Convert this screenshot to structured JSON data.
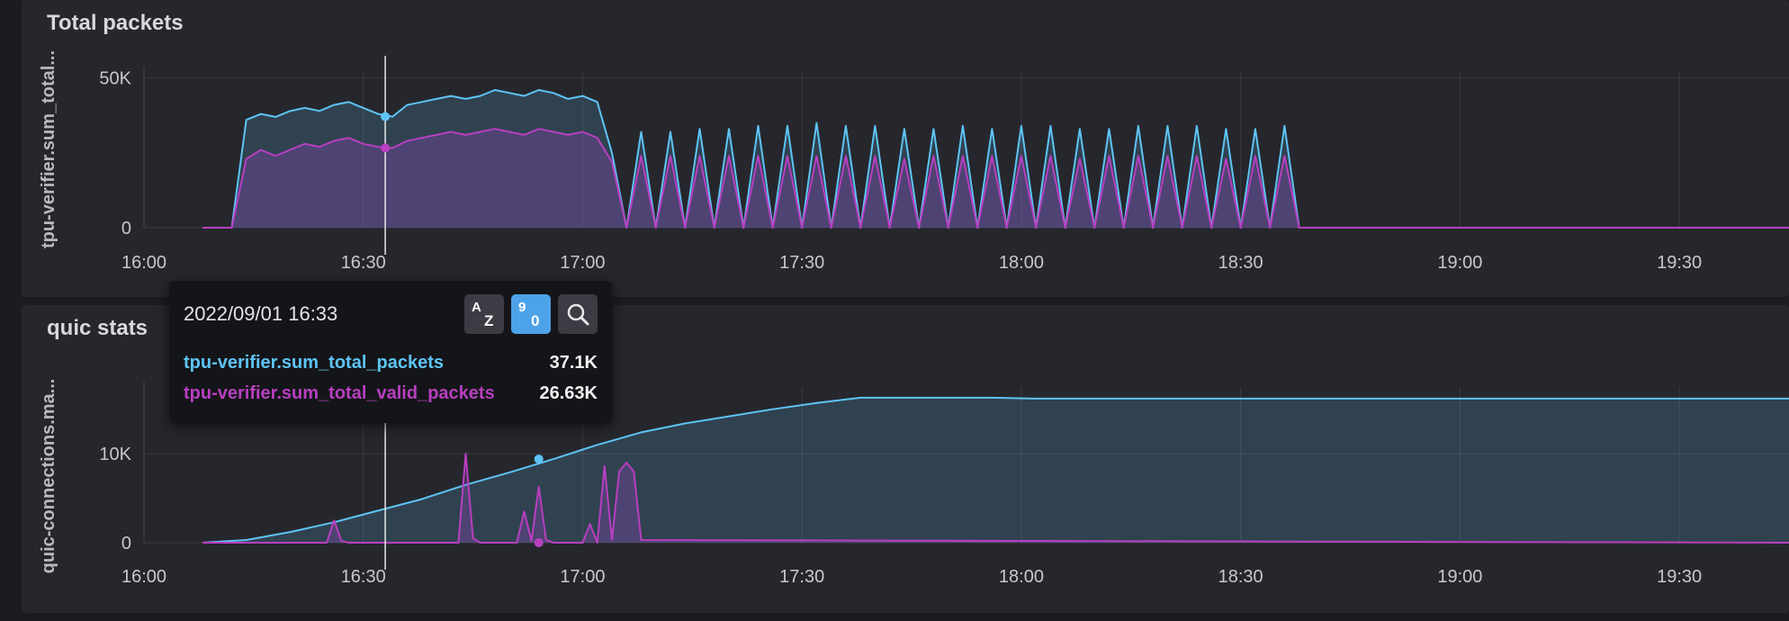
{
  "panels": [
    {
      "title": "Total packets",
      "ylabel": "tpu-verifier.sum_total..."
    },
    {
      "title": "quic stats",
      "ylabel": "quic-connections.ma..."
    }
  ],
  "tooltip": {
    "time": "2022/09/01 16:33",
    "sort_az_top": "A",
    "sort_az_bottom": "Z",
    "sort_num_top": "9",
    "sort_num_bottom": "0",
    "search_icon": "magnifier-icon",
    "rows": [
      {
        "name": "tpu-verifier.sum_total_packets",
        "value": "37.1K",
        "color": "#5ec4f5"
      },
      {
        "name": "tpu-verifier.sum_total_valid_packets",
        "value": "26.63K",
        "color": "#b83fc0"
      }
    ]
  },
  "colors": {
    "total_packets": "#5ec4f5",
    "valid_packets": "#b83fc0"
  },
  "chart_data": [
    {
      "type": "area",
      "title": "Total packets",
      "ylabel": "tpu-verifier.sum_total...",
      "x_ticks": [
        "16:00",
        "16:30",
        "17:00",
        "17:30",
        "18:00",
        "18:30",
        "19:00",
        "19:30"
      ],
      "y_ticks": [
        "0",
        "50K"
      ],
      "xlim_minutes": [
        960,
        1185
      ],
      "ylim": [
        0,
        52000
      ],
      "grid": true,
      "cursor_time": "16:33",
      "series": [
        {
          "name": "tpu-verifier.sum_total_packets",
          "x": [
            968,
            972,
            974,
            976,
            978,
            980,
            982,
            984,
            986,
            988,
            990,
            992,
            994,
            996,
            998,
            1000,
            1002,
            1004,
            1006,
            1008,
            1010,
            1012,
            1014,
            1016,
            1018,
            1020,
            1022,
            1024,
            1026,
            1028,
            1030,
            1032,
            1034,
            1036,
            1038,
            1040,
            1042,
            1044,
            1046,
            1048,
            1050,
            1052,
            1054,
            1056,
            1058,
            1060,
            1062,
            1064,
            1066,
            1068,
            1070,
            1072,
            1074,
            1076,
            1078,
            1080,
            1082,
            1084,
            1086,
            1088,
            1090,
            1092,
            1094,
            1096,
            1098,
            1100,
            1102,
            1104,
            1106,
            1108,
            1110,
            1112,
            1114,
            1116,
            1118,
            1120,
            1185
          ],
          "y": [
            0,
            0,
            36000,
            38000,
            37000,
            39000,
            40000,
            39000,
            41000,
            42000,
            40000,
            38000,
            37100,
            41000,
            42000,
            43000,
            44000,
            43000,
            44000,
            46000,
            45000,
            44000,
            46000,
            45000,
            43000,
            44000,
            42000,
            25000,
            0,
            32000,
            0,
            32000,
            0,
            33000,
            0,
            33000,
            0,
            34000,
            0,
            34000,
            0,
            35000,
            0,
            34000,
            0,
            34000,
            0,
            33000,
            0,
            33000,
            0,
            34000,
            0,
            33000,
            0,
            34000,
            0,
            34000,
            0,
            33000,
            0,
            33000,
            0,
            34000,
            0,
            34000,
            0,
            34000,
            0,
            33000,
            0,
            33000,
            0,
            34000,
            0,
            0,
            0
          ]
        },
        {
          "name": "tpu-verifier.sum_total_valid_packets",
          "x": [
            968,
            972,
            974,
            976,
            978,
            980,
            982,
            984,
            986,
            988,
            990,
            992,
            994,
            996,
            998,
            1000,
            1002,
            1004,
            1006,
            1008,
            1010,
            1012,
            1014,
            1016,
            1018,
            1020,
            1022,
            1024,
            1026,
            1028,
            1030,
            1032,
            1034,
            1036,
            1038,
            1040,
            1042,
            1044,
            1046,
            1048,
            1050,
            1052,
            1054,
            1056,
            1058,
            1060,
            1062,
            1064,
            1066,
            1068,
            1070,
            1072,
            1074,
            1076,
            1078,
            1080,
            1082,
            1084,
            1086,
            1088,
            1090,
            1092,
            1094,
            1096,
            1098,
            1100,
            1102,
            1104,
            1106,
            1108,
            1110,
            1112,
            1114,
            1116,
            1118,
            1120,
            1185
          ],
          "y": [
            0,
            0,
            23000,
            26000,
            24000,
            26000,
            28000,
            27000,
            29000,
            30000,
            28000,
            27000,
            26630,
            29000,
            30000,
            31000,
            32000,
            31000,
            32000,
            33000,
            32000,
            31000,
            33000,
            32000,
            31000,
            32000,
            30000,
            22000,
            0,
            24000,
            0,
            24000,
            0,
            24000,
            0,
            24000,
            0,
            24000,
            0,
            24000,
            0,
            24000,
            0,
            24000,
            0,
            24000,
            0,
            23000,
            0,
            24000,
            0,
            24000,
            0,
            24000,
            0,
            24000,
            0,
            24000,
            0,
            23000,
            0,
            24000,
            0,
            24000,
            0,
            24000,
            0,
            24000,
            0,
            23000,
            0,
            24000,
            0,
            24000,
            0,
            0,
            0
          ]
        }
      ]
    },
    {
      "type": "area",
      "title": "quic stats",
      "ylabel": "quic-connections.ma...",
      "x_ticks": [
        "16:00",
        "16:30",
        "17:00",
        "17:30",
        "18:00",
        "18:30",
        "19:00",
        "19:30"
      ],
      "y_ticks": [
        "0",
        "10K"
      ],
      "xlim_minutes": [
        960,
        1185
      ],
      "ylim": [
        0,
        17500
      ],
      "grid": true,
      "cursor_time": "16:33",
      "series": [
        {
          "name": "tpu-verifier.sum_total_packets",
          "x": [
            968,
            974,
            980,
            986,
            992,
            998,
            1004,
            1010,
            1016,
            1022,
            1028,
            1034,
            1040,
            1046,
            1052,
            1058,
            1064,
            1070,
            1076,
            1082,
            1185
          ],
          "y": [
            0,
            300,
            1200,
            2300,
            3600,
            4900,
            6500,
            7900,
            9400,
            11000,
            12400,
            13400,
            14200,
            15000,
            15700,
            16300,
            16300,
            16300,
            16300,
            16200,
            16200
          ]
        },
        {
          "name": "tpu-verifier.sum_total_valid_packets",
          "x": [
            968,
            985,
            986,
            987,
            988,
            1000,
            1003,
            1004,
            1005,
            1006,
            1011,
            1012,
            1013,
            1014,
            1015,
            1016,
            1017,
            1018,
            1020,
            1021,
            1022,
            1023,
            1024,
            1025,
            1026,
            1027,
            1028,
            1185
          ],
          "y": [
            0,
            0,
            2500,
            200,
            0,
            0,
            0,
            10000,
            500,
            0,
            0,
            3500,
            200,
            6300,
            300,
            0,
            0,
            0,
            0,
            2100,
            0,
            8600,
            300,
            8000,
            9000,
            8000,
            300,
            0
          ]
        }
      ]
    }
  ]
}
